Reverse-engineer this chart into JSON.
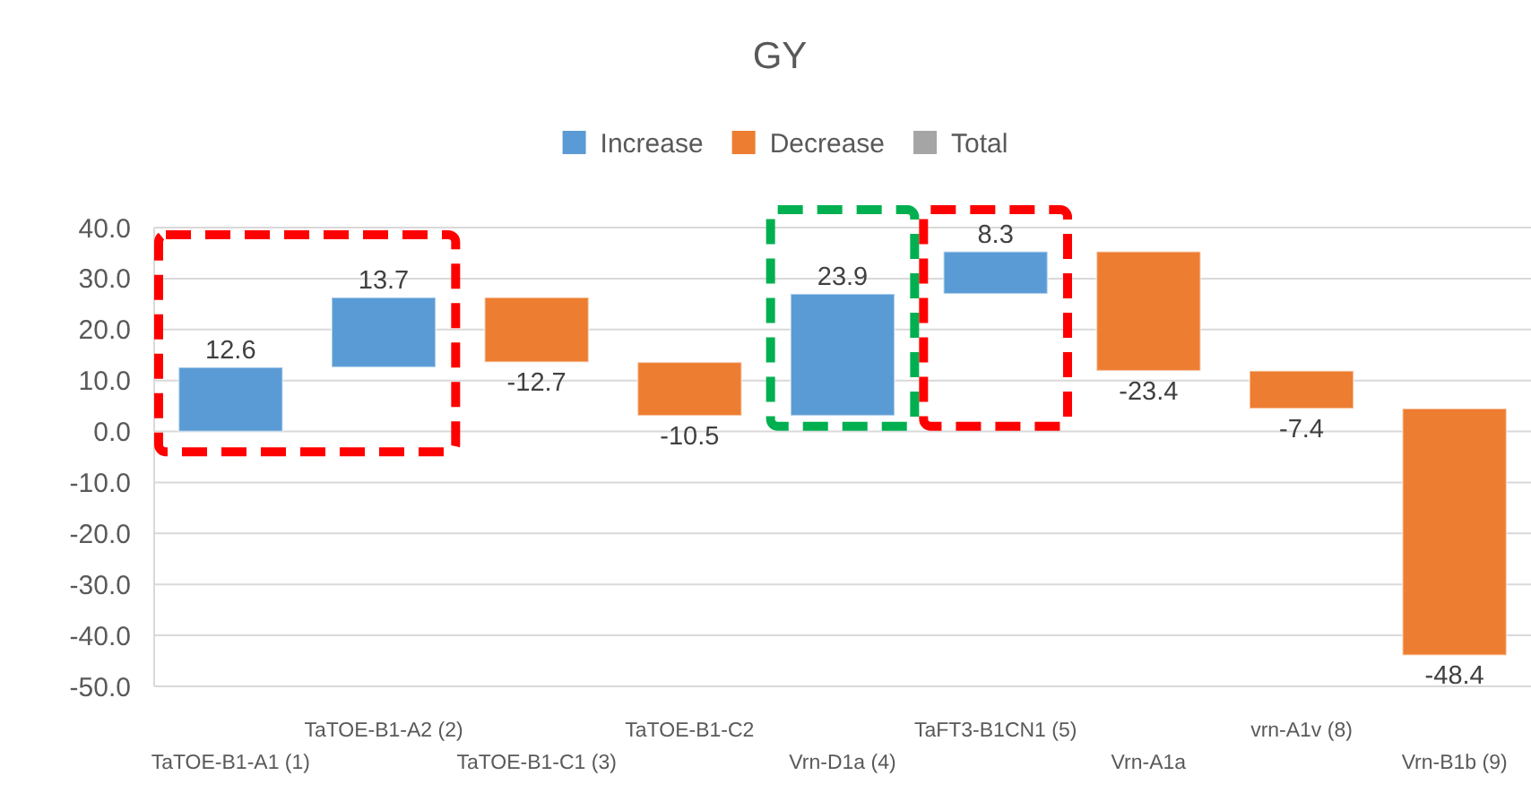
{
  "chart_data": {
    "type": "bar",
    "title": "GY",
    "categories": [
      "TaTOE-B1-A1 (1)",
      "TaTOE-B1-A2 (2)",
      "TaTOE-B1-C1 (3)",
      "TaTOE-B1-C2",
      "Vrn-D1a (4)",
      "TaFT3-B1CN1 (5)",
      "Vrn-A1a",
      "vrn-A1v (8)",
      "Vrn-B1b (9)"
    ],
    "series": [
      {
        "name": "Increase",
        "color": "#5b9bd5",
        "values": [
          12.6,
          13.7,
          null,
          null,
          23.9,
          8.3,
          null,
          null,
          null
        ],
        "base": [
          0,
          12.6,
          null,
          null,
          3.1,
          27.0,
          null,
          null,
          null
        ]
      },
      {
        "name": "Decrease",
        "color": "#ed7d31",
        "values": [
          null,
          null,
          -12.7,
          -10.5,
          null,
          null,
          -23.4,
          -7.4,
          -48.4
        ],
        "base": [
          null,
          null,
          26.3,
          13.6,
          null,
          null,
          35.3,
          11.9,
          4.5
        ]
      },
      {
        "name": "Total",
        "color": "#a5a5a5",
        "values": [
          null,
          null,
          null,
          null,
          null,
          null,
          null,
          null,
          null
        ]
      }
    ],
    "ylim": [
      -50,
      40
    ],
    "yticks": [
      {
        "value": -50,
        "label": "-50.0"
      },
      {
        "value": -40,
        "label": "-40.0"
      },
      {
        "value": -30,
        "label": "-30.0"
      },
      {
        "value": -20,
        "label": "-20.0"
      },
      {
        "value": -10,
        "label": "-10.0"
      },
      {
        "value": 0,
        "label": "0.0"
      },
      {
        "value": 10,
        "label": "10.0"
      },
      {
        "value": 20,
        "label": "20.0"
      },
      {
        "value": 30,
        "label": "30.0"
      },
      {
        "value": 40,
        "label": "40.0"
      }
    ],
    "grid": "y",
    "legend": "top",
    "data_labels": true
  }
}
